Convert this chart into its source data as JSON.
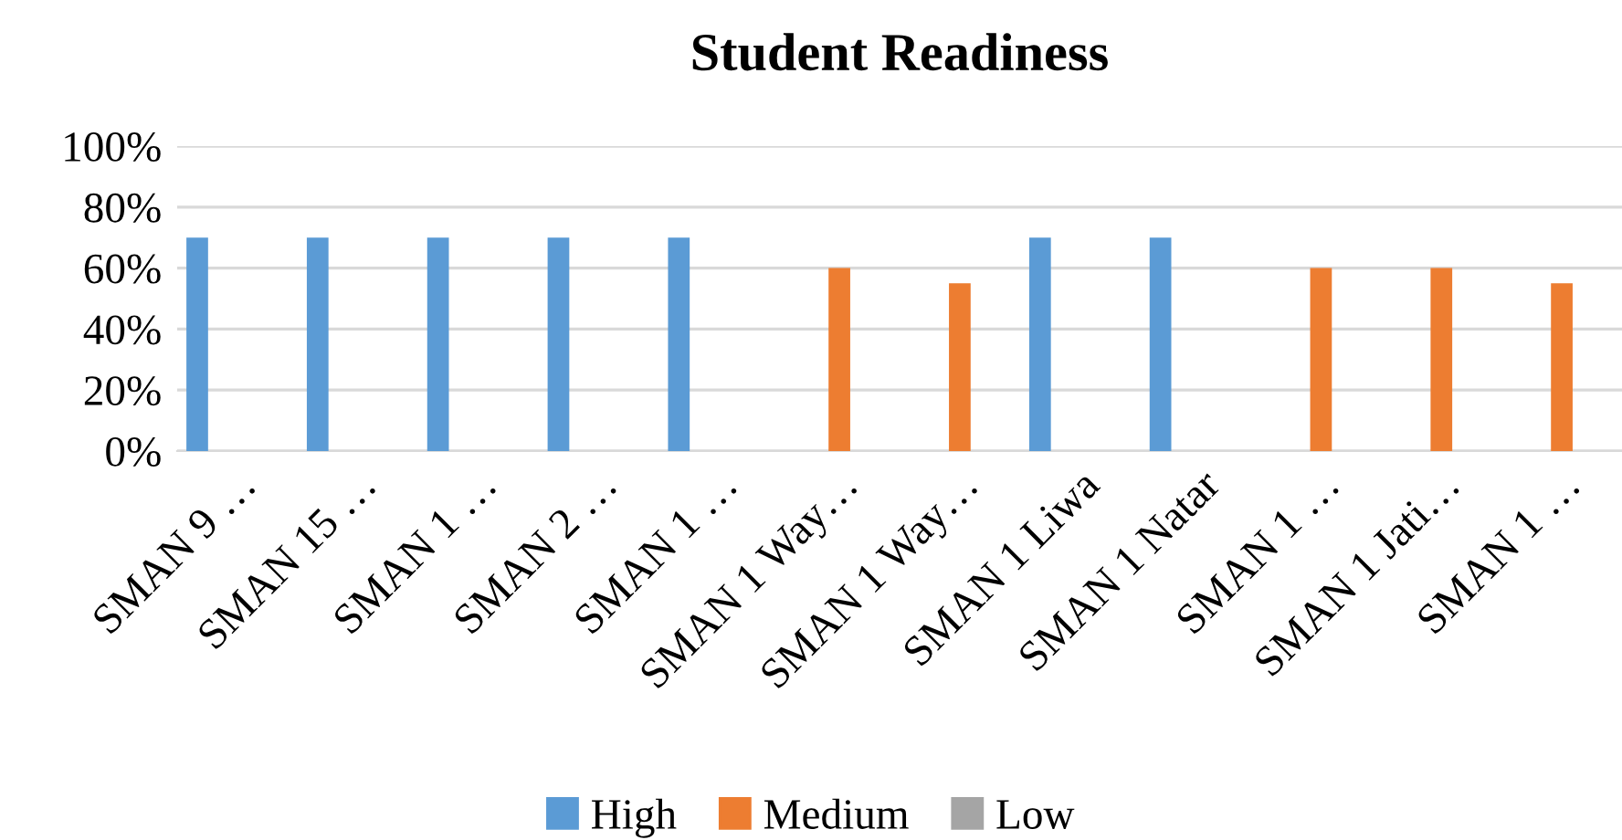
{
  "chart_data": {
    "type": "bar",
    "title": "Student Readiness",
    "categories": [
      "SMAN 9 …",
      "SMAN 15 …",
      "SMAN 1 …",
      "SMAN 2 …",
      "SMAN 1 …",
      "SMAN 1 Way…",
      "SMAN 1 Way…",
      "SMAN 1 Liwa",
      "SMAN 1 Natar",
      "SMAN 1 …",
      "SMAN 1 Jati…",
      "SMAN 1 …"
    ],
    "series": [
      {
        "name": "High",
        "color": "#5b9bd5",
        "values": [
          70,
          70,
          70,
          70,
          70,
          null,
          null,
          70,
          70,
          null,
          null,
          null
        ]
      },
      {
        "name": "Medium",
        "color": "#ed7d31",
        "values": [
          null,
          null,
          null,
          null,
          null,
          60,
          55,
          null,
          null,
          60,
          60,
          55
        ]
      },
      {
        "name": "Low",
        "color": "#a5a5a5",
        "values": [
          null,
          null,
          null,
          null,
          null,
          null,
          null,
          null,
          null,
          null,
          null,
          null
        ]
      }
    ],
    "ylim": [
      0,
      100
    ],
    "yticks": [
      {
        "value": 0,
        "label": "0%"
      },
      {
        "value": 20,
        "label": "20%"
      },
      {
        "value": 40,
        "label": "40%"
      },
      {
        "value": 60,
        "label": "60%"
      },
      {
        "value": 80,
        "label": "80%"
      },
      {
        "value": 100,
        "label": "100%"
      }
    ],
    "grid": "y",
    "legend": "bottom"
  }
}
